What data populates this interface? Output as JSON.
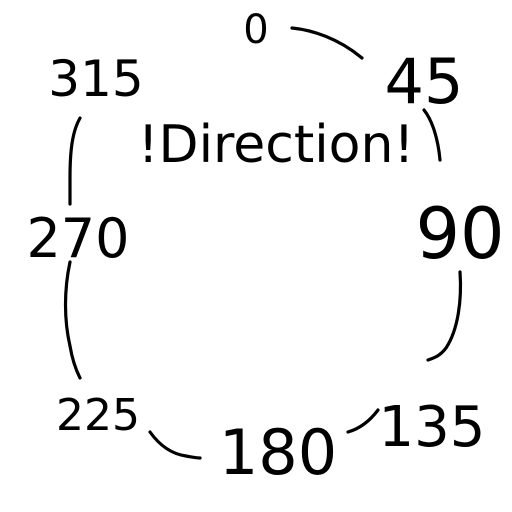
{
  "labels": {
    "north": "0",
    "northeast": "45",
    "east": "90",
    "southeast": "135",
    "south": "180",
    "southwest": "225",
    "west": "270",
    "northwest": "315",
    "center": "!Direction!"
  },
  "ink_color": "#000000",
  "background_color": "#ffffff"
}
